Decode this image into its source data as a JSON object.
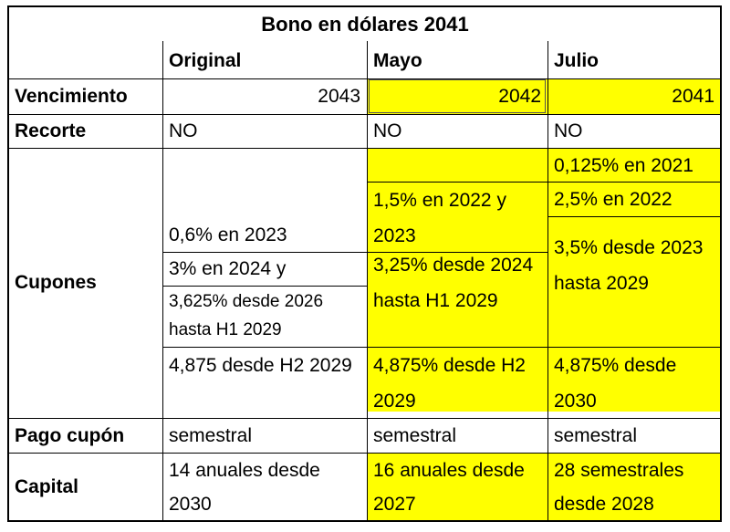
{
  "title": "Bono en dólares 2041",
  "columns": [
    "Original",
    "Mayo",
    "Julio"
  ],
  "rows": {
    "vencimiento": {
      "label": "Vencimiento",
      "original": "2043",
      "mayo": "2042",
      "julio": "2041"
    },
    "recorte": {
      "label": "Recorte",
      "original": "NO",
      "mayo": "NO",
      "julio": "NO"
    },
    "cupones": {
      "label": "Cupones",
      "original": [
        "0,6% en 2023",
        "3% en 2024 y",
        "3,625% desde 2026 hasta H1 2029",
        "4,875 desde H2 2029"
      ],
      "mayo": [
        "1,5% en 2022 y 2023",
        "3,25% desde 2024 hasta H1 2029",
        "4,875% desde H2 2029"
      ],
      "julio": [
        "0,125% en 2021",
        "2,5% en 2022",
        "3,5% desde 2023 hasta 2029",
        "4,875% desde 2030"
      ]
    },
    "pago": {
      "label": "Pago cupón",
      "original": "semestral",
      "mayo": "semestral",
      "julio": "semestral"
    },
    "capital": {
      "label": "Capital",
      "original": "14 anuales desde 2030",
      "mayo": "16 anuales desde 2027",
      "julio": "28 semestrales desde 2028"
    }
  },
  "colors": {
    "highlight": "#ffff00"
  }
}
